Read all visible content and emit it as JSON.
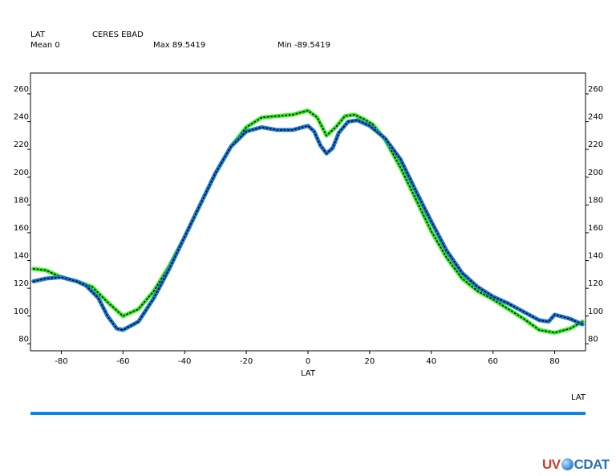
{
  "header": {
    "row1_left": "LAT",
    "row1_mid": "CERES EBAD",
    "row2_mean": "Mean 0",
    "row2_max": "Max 89.5419",
    "row2_min": "Min -89.5419"
  },
  "legend": {
    "axis_label": "LAT",
    "bar_color": "#0a84f0"
  },
  "logo": {
    "part1": "UV",
    "part2": "CDAT"
  },
  "chart_data": {
    "type": "line",
    "xlabel": "LAT",
    "ylabel": "",
    "xlim": [
      -90,
      90
    ],
    "ylim": [
      75,
      275
    ],
    "x_ticks": [
      -80,
      -60,
      -40,
      -20,
      0,
      20,
      40,
      60,
      80
    ],
    "y_ticks": [
      80,
      100,
      120,
      140,
      160,
      180,
      200,
      220,
      240,
      260
    ],
    "grid": false,
    "series": [
      {
        "color": "#33ee22",
        "x": [
          -89,
          -85,
          -80,
          -75,
          -70,
          -65,
          -60,
          -55,
          -50,
          -45,
          -40,
          -35,
          -30,
          -25,
          -20,
          -15,
          -10,
          -5,
          0,
          3,
          6,
          9,
          12,
          15,
          18,
          21,
          25,
          30,
          35,
          40,
          45,
          50,
          55,
          60,
          65,
          70,
          75,
          80,
          85,
          89
        ],
        "values": [
          134,
          133,
          128,
          125,
          121,
          110,
          100,
          105,
          118,
          136,
          157,
          180,
          203,
          222,
          236,
          243,
          244,
          245,
          248,
          243,
          230,
          236,
          244,
          245,
          242,
          238,
          227,
          207,
          184,
          161,
          142,
          127,
          118,
          112,
          105,
          98,
          90,
          88,
          91,
          96
        ]
      },
      {
        "color": "#1e78d8",
        "x": [
          -89,
          -85,
          -80,
          -75,
          -72,
          -68,
          -65,
          -62,
          -60,
          -55,
          -50,
          -45,
          -40,
          -35,
          -30,
          -25,
          -20,
          -15,
          -10,
          -5,
          0,
          2,
          4,
          6,
          8,
          10,
          13,
          16,
          20,
          25,
          30,
          35,
          40,
          45,
          50,
          55,
          60,
          65,
          70,
          75,
          78,
          80,
          85,
          89
        ],
        "values": [
          125,
          127,
          128,
          125,
          122,
          113,
          100,
          91,
          90,
          96,
          113,
          134,
          157,
          180,
          203,
          222,
          233,
          236,
          234,
          234,
          237,
          233,
          223,
          217,
          221,
          232,
          240,
          241,
          237,
          228,
          213,
          190,
          168,
          147,
          131,
          121,
          114,
          109,
          103,
          97,
          96,
          101,
          98,
          94
        ]
      }
    ]
  }
}
